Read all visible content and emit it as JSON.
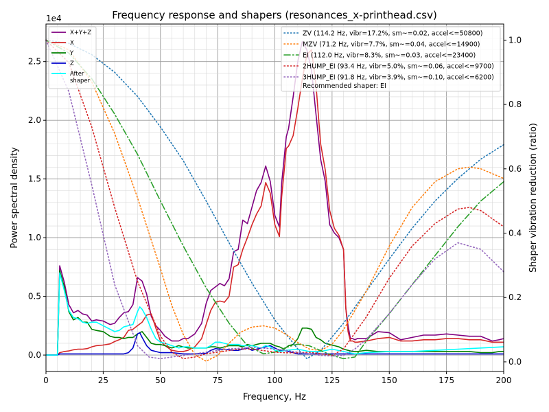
{
  "chart_data": {
    "type": "line",
    "title": "Frequency response and shapers (resonances_x-printhead.csv)",
    "xlabel": "Frequency, Hz",
    "ylabel": "Power spectral density",
    "ylabel_right": "Shaper vibration reduction (ratio)",
    "y_offset_label": "1e4",
    "xlim": [
      0,
      200
    ],
    "ylim": [
      -1400,
      28200
    ],
    "y2lim": [
      -0.03,
      1.05
    ],
    "x_ticks": [
      0,
      25,
      50,
      75,
      100,
      125,
      150,
      175,
      200
    ],
    "x_tick_labels": [
      "0",
      "25",
      "50",
      "75",
      "100",
      "125",
      "150",
      "175",
      "200"
    ],
    "y_ticks": [
      0,
      5000,
      10000,
      15000,
      20000,
      25000
    ],
    "y_tick_labels": [
      "0.0",
      "0.5",
      "1.0",
      "1.5",
      "2.0",
      "2.5"
    ],
    "y2_ticks": [
      0.0,
      0.2,
      0.4,
      0.6,
      0.8,
      1.0
    ],
    "y2_tick_labels": [
      "0.0",
      "0.2",
      "0.4",
      "0.6",
      "0.8",
      "1.0"
    ],
    "grid": true,
    "recommendation": "Recommended shaper: EI",
    "psd_series": [
      {
        "name": "X+Y+Z",
        "color": "#800080",
        "x": [
          0,
          5,
          6,
          8,
          10,
          12,
          14,
          16,
          18,
          20,
          22,
          25,
          28,
          30,
          32,
          34,
          36,
          38,
          40,
          42,
          44,
          46,
          48,
          50,
          52,
          55,
          58,
          60,
          62,
          65,
          68,
          70,
          72,
          74,
          76,
          78,
          80,
          82,
          84,
          86,
          88,
          90,
          92,
          94,
          96,
          98,
          100,
          102,
          103,
          105,
          106,
          108,
          110,
          112,
          114,
          116,
          118,
          120,
          122,
          124,
          126,
          128,
          130,
          131,
          132,
          133,
          134,
          135,
          136,
          140,
          145,
          150,
          155,
          160,
          165,
          170,
          175,
          180,
          185,
          190,
          195,
          198,
          200
        ],
        "y": [
          0,
          0,
          7600,
          6200,
          4300,
          3600,
          3800,
          3500,
          3400,
          2900,
          3000,
          2900,
          2600,
          2700,
          3200,
          3600,
          3700,
          4300,
          6600,
          6300,
          5200,
          3300,
          2500,
          2100,
          1600,
          1200,
          1200,
          1400,
          1400,
          1800,
          2700,
          4400,
          5500,
          5800,
          6100,
          5900,
          6500,
          8800,
          9000,
          11500,
          11200,
          12600,
          14000,
          14700,
          16100,
          14800,
          11900,
          10900,
          14700,
          18600,
          19300,
          22000,
          25000,
          26700,
          26000,
          24300,
          20500,
          16700,
          14800,
          11100,
          10400,
          10000,
          9000,
          4000,
          2500,
          1400,
          1400,
          1300,
          1400,
          1400,
          2000,
          1900,
          1300,
          1500,
          1700,
          1700,
          1800,
          1700,
          1600,
          1600,
          1200,
          1300,
          1400
        ]
      },
      {
        "name": "X",
        "color": "#d62728",
        "x": [
          0,
          5,
          6,
          8,
          10,
          12,
          14,
          16,
          18,
          20,
          22,
          25,
          28,
          30,
          32,
          34,
          36,
          38,
          40,
          42,
          44,
          46,
          48,
          50,
          52,
          55,
          58,
          60,
          62,
          65,
          68,
          70,
          72,
          74,
          76,
          78,
          80,
          82,
          84,
          86,
          88,
          90,
          92,
          94,
          96,
          98,
          100,
          102,
          103,
          105,
          106,
          108,
          110,
          112,
          114,
          116,
          118,
          120,
          122,
          124,
          126,
          128,
          130,
          131,
          132,
          133,
          134,
          135,
          136,
          140,
          145,
          150,
          155,
          160,
          165,
          170,
          175,
          180,
          185,
          190,
          195,
          198,
          200
        ],
        "y": [
          0,
          0,
          200,
          300,
          350,
          450,
          500,
          500,
          550,
          700,
          800,
          850,
          950,
          1150,
          1300,
          1500,
          2100,
          2200,
          2500,
          2800,
          3400,
          3500,
          2300,
          1200,
          800,
          400,
          300,
          300,
          400,
          700,
          1400,
          2600,
          3800,
          4500,
          4600,
          4500,
          5000,
          7500,
          7700,
          9000,
          10000,
          11100,
          12000,
          12700,
          14700,
          13800,
          11100,
          10100,
          13500,
          17600,
          17800,
          18700,
          21000,
          23500,
          25600,
          26000,
          23000,
          18000,
          15800,
          12300,
          10800,
          10200,
          9000,
          4000,
          2000,
          1200,
          1200,
          1100,
          1100,
          1200,
          1400,
          1500,
          1200,
          1200,
          1300,
          1300,
          1400,
          1400,
          1300,
          1300,
          1100,
          1100,
          1100
        ]
      },
      {
        "name": "Y",
        "color": "#008000",
        "x": [
          0,
          5,
          6,
          8,
          10,
          12,
          14,
          16,
          18,
          20,
          22,
          25,
          28,
          30,
          32,
          34,
          36,
          38,
          40,
          42,
          44,
          46,
          48,
          50,
          52,
          55,
          58,
          60,
          62,
          65,
          68,
          70,
          72,
          74,
          76,
          78,
          80,
          82,
          84,
          86,
          88,
          90,
          92,
          94,
          96,
          98,
          100,
          102,
          104,
          106,
          108,
          110,
          112,
          114,
          116,
          118,
          120,
          122,
          124,
          126,
          128,
          130,
          132,
          134,
          136,
          140,
          145,
          150,
          155,
          160,
          165,
          170,
          175,
          180,
          185,
          190,
          195,
          198,
          200
        ],
        "y": [
          0,
          0,
          7200,
          5800,
          3700,
          3000,
          3200,
          2800,
          2800,
          2200,
          2100,
          2000,
          1600,
          1500,
          1500,
          1400,
          1500,
          1500,
          1800,
          2000,
          1500,
          1000,
          900,
          900,
          800,
          600,
          800,
          700,
          600,
          600,
          600,
          600,
          700,
          700,
          600,
          700,
          800,
          800,
          800,
          700,
          900,
          800,
          900,
          1000,
          1000,
          1000,
          800,
          700,
          500,
          800,
          900,
          1400,
          2300,
          2300,
          2200,
          1500,
          1300,
          1000,
          900,
          800,
          700,
          500,
          400,
          300,
          300,
          400,
          300,
          300,
          300,
          300,
          300,
          300,
          300,
          300,
          300,
          200,
          200,
          300,
          300
        ]
      },
      {
        "name": "Z",
        "color": "#0000cc",
        "x": [
          0,
          5,
          6,
          8,
          10,
          15,
          20,
          25,
          30,
          34,
          36,
          38,
          40,
          41,
          42,
          44,
          46,
          48,
          50,
          55,
          60,
          65,
          70,
          72,
          74,
          76,
          78,
          80,
          82,
          84,
          86,
          88,
          90,
          92,
          94,
          96,
          98,
          100,
          102,
          104,
          106,
          108,
          110,
          115,
          120,
          125,
          130,
          135,
          140,
          150,
          160,
          170,
          180,
          190,
          200
        ],
        "y": [
          0,
          0,
          100,
          100,
          100,
          100,
          100,
          100,
          100,
          100,
          200,
          600,
          1800,
          1900,
          1500,
          800,
          400,
          300,
          200,
          200,
          100,
          100,
          150,
          400,
          550,
          500,
          500,
          450,
          400,
          400,
          500,
          600,
          400,
          500,
          600,
          700,
          800,
          600,
          400,
          400,
          300,
          200,
          100,
          100,
          100,
          100,
          100,
          100,
          100,
          100,
          100,
          100,
          100,
          100,
          100
        ]
      },
      {
        "name": "After\nshaper",
        "color": "#00ffff",
        "x": [
          0,
          5,
          6,
          8,
          10,
          12,
          14,
          16,
          18,
          20,
          22,
          25,
          28,
          30,
          32,
          34,
          36,
          38,
          40,
          41,
          42,
          44,
          46,
          48,
          50,
          52,
          55,
          58,
          60,
          62,
          65,
          68,
          70,
          72,
          74,
          76,
          78,
          80,
          82,
          84,
          86,
          88,
          90,
          92,
          94,
          96,
          98,
          100,
          102,
          105,
          110,
          115,
          120,
          125,
          130,
          135,
          140,
          150,
          160,
          170,
          180,
          190,
          200
        ],
        "y": [
          0,
          0,
          7000,
          5500,
          3800,
          3200,
          3100,
          2800,
          2700,
          2800,
          2800,
          2500,
          2200,
          2000,
          2100,
          2400,
          2500,
          2600,
          3700,
          4100,
          3900,
          3200,
          2200,
          1400,
          1100,
          1000,
          800,
          600,
          700,
          700,
          600,
          600,
          600,
          800,
          1100,
          1100,
          1000,
          900,
          900,
          900,
          800,
          800,
          800,
          700,
          600,
          800,
          700,
          400,
          300,
          400,
          500,
          300,
          300,
          500,
          300,
          100,
          200,
          300,
          300,
          400,
          500,
          600,
          700
        ]
      }
    ],
    "shaper_series": [
      {
        "name": "ZV (114.2 Hz, vibr=17.2%, sm~=0.02, accel<=50800)",
        "color": "#1f77b4",
        "dash": "dotted",
        "x": [
          0,
          10,
          20,
          30,
          40,
          50,
          60,
          70,
          80,
          90,
          100,
          110,
          114,
          120,
          130,
          140,
          150,
          160,
          170,
          180,
          190,
          200
        ],
        "y": [
          1.0,
          0.99,
          0.955,
          0.9,
          0.825,
          0.73,
          0.625,
          0.5,
          0.37,
          0.245,
          0.13,
          0.04,
          0.01,
          0.035,
          0.12,
          0.22,
          0.32,
          0.415,
          0.5,
          0.57,
          0.63,
          0.675
        ]
      },
      {
        "name": "MZV (71.2 Hz, vibr=7.7%, sm~=0.04, accel<=14900)",
        "color": "#ff7f0e",
        "dash": "dotted",
        "x": [
          0,
          10,
          20,
          30,
          40,
          50,
          55,
          60,
          65,
          70,
          75,
          80,
          85,
          90,
          95,
          100,
          105,
          110,
          115,
          120,
          125,
          130,
          140,
          150,
          160,
          170,
          180,
          185,
          190,
          200
        ],
        "y": [
          1.0,
          0.97,
          0.87,
          0.71,
          0.51,
          0.29,
          0.175,
          0.085,
          0.022,
          0.002,
          0.02,
          0.058,
          0.092,
          0.108,
          0.112,
          0.105,
          0.085,
          0.06,
          0.04,
          0.035,
          0.055,
          0.1,
          0.22,
          0.36,
          0.48,
          0.56,
          0.6,
          0.605,
          0.6,
          0.57
        ]
      },
      {
        "name": "EI (112.0 Hz, vibr=8.3%, sm~=0.03, accel<=23400)",
        "color": "#2ca02c",
        "dash": "dashdot",
        "x": [
          0,
          10,
          20,
          30,
          40,
          50,
          60,
          70,
          80,
          88,
          95,
          100,
          105,
          110,
          115,
          120,
          125,
          130,
          135,
          140,
          150,
          160,
          170,
          180,
          190,
          200
        ],
        "y": [
          1.0,
          0.96,
          0.88,
          0.77,
          0.645,
          0.5,
          0.36,
          0.23,
          0.12,
          0.05,
          0.025,
          0.03,
          0.045,
          0.055,
          0.05,
          0.035,
          0.02,
          0.01,
          0.015,
          0.065,
          0.15,
          0.24,
          0.33,
          0.42,
          0.5,
          0.56
        ]
      },
      {
        "name": "2HUMP_EI (93.4 Hz, vibr=5.0%, sm~=0.06, accel<=9700)",
        "color": "#d62728",
        "dash": "dotted",
        "x": [
          0,
          10,
          20,
          30,
          40,
          50,
          55,
          60,
          65,
          70,
          75,
          80,
          85,
          90,
          95,
          100,
          105,
          110,
          115,
          120,
          125,
          130,
          140,
          150,
          160,
          170,
          180,
          185,
          190,
          200
        ],
        "y": [
          1.0,
          0.93,
          0.73,
          0.48,
          0.25,
          0.08,
          0.03,
          0.01,
          0.015,
          0.025,
          0.03,
          0.035,
          0.04,
          0.04,
          0.035,
          0.03,
          0.028,
          0.028,
          0.03,
          0.025,
          0.02,
          0.04,
          0.14,
          0.26,
          0.36,
          0.43,
          0.475,
          0.48,
          0.47,
          0.42
        ]
      },
      {
        "name": "3HUMP_EI (91.8 Hz, vibr=3.9%, sm~=0.10, accel<=6200)",
        "color": "#9467bd",
        "dash": "dotted",
        "x": [
          0,
          10,
          20,
          30,
          40,
          45,
          50,
          55,
          60,
          70,
          80,
          90,
          100,
          110,
          115,
          120,
          125,
          130,
          135,
          140,
          150,
          160,
          170,
          180,
          190,
          200
        ],
        "y": [
          1.0,
          0.84,
          0.55,
          0.24,
          0.05,
          0.015,
          0.01,
          0.015,
          0.02,
          0.03,
          0.04,
          0.045,
          0.04,
          0.03,
          0.025,
          0.02,
          0.018,
          0.02,
          0.04,
          0.07,
          0.15,
          0.24,
          0.32,
          0.37,
          0.35,
          0.28
        ]
      }
    ]
  }
}
